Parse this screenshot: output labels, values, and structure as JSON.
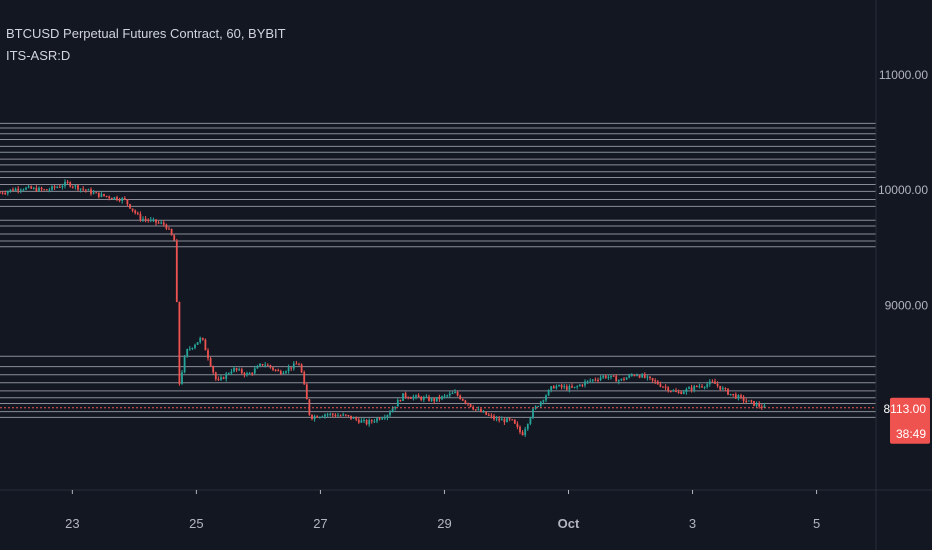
{
  "header": {
    "symbol_line": "BTCUSD Perpetual Futures Contract, 60, BYBIT",
    "indicator": "ITS-ASR:D"
  },
  "colors": {
    "background": "#131722",
    "up": "#26a69a",
    "down": "#ef5350",
    "level_line": "#b2b5be",
    "axis_text": "#b2b5be",
    "price_label_bg": "#ef5350"
  },
  "chart_data": {
    "type": "candlestick",
    "title": "BTCUSD Perpetual Futures Contract, 60, BYBIT",
    "x_ticks": [
      "23",
      "25",
      "27",
      "29",
      "Oct",
      "3",
      "5"
    ],
    "y_ticks": [
      "11000.00",
      "10000.00",
      "9000.00"
    ],
    "ylim": [
      7400,
      11650
    ],
    "x_dates": [
      "2019-09-21T20:00",
      "2019-10-05T23:00"
    ],
    "current_price": "8113.00",
    "countdown": "38:49",
    "support_resistance_levels": [
      10580,
      10540,
      10490,
      10440,
      10380,
      10330,
      10270,
      10220,
      10160,
      10110,
      10050,
      9990,
      9920,
      9860,
      9740,
      9690,
      9620,
      9560,
      9510,
      8560,
      8470,
      8400,
      8330,
      8260,
      8200,
      8150,
      8080,
      8030
    ],
    "price_path": [
      [
        "2019-09-21T20:00",
        9980
      ],
      [
        "2019-09-22T04:00",
        10020
      ],
      [
        "2019-09-22T14:00",
        10000
      ],
      [
        "2019-09-22T22:00",
        10060
      ],
      [
        "2019-09-23T10:00",
        9960
      ],
      [
        "2019-09-23T20:00",
        9920
      ],
      [
        "2019-09-24T02:00",
        9760
      ],
      [
        "2019-09-24T12:00",
        9700
      ],
      [
        "2019-09-24T16:00",
        9540
      ],
      [
        "2019-09-24T17:00",
        8280
      ],
      [
        "2019-09-24T20:00",
        8600
      ],
      [
        "2019-09-25T02:00",
        8720
      ],
      [
        "2019-09-25T08:00",
        8330
      ],
      [
        "2019-09-25T14:00",
        8450
      ],
      [
        "2019-09-25T20:00",
        8400
      ],
      [
        "2019-09-26T02:00",
        8500
      ],
      [
        "2019-09-26T08:00",
        8420
      ],
      [
        "2019-09-26T16:00",
        8500
      ],
      [
        "2019-09-26T20:00",
        8030
      ],
      [
        "2019-09-27T02:00",
        8060
      ],
      [
        "2019-09-27T10:00",
        8040
      ],
      [
        "2019-09-27T18:00",
        7980
      ],
      [
        "2019-09-28T02:00",
        8060
      ],
      [
        "2019-09-28T08:00",
        8220
      ],
      [
        "2019-09-28T14:00",
        8200
      ],
      [
        "2019-09-28T20:00",
        8180
      ],
      [
        "2019-09-29T04:00",
        8240
      ],
      [
        "2019-09-29T12:00",
        8100
      ],
      [
        "2019-09-29T20:00",
        8010
      ],
      [
        "2019-09-30T02:00",
        8000
      ],
      [
        "2019-09-30T06:00",
        7880
      ],
      [
        "2019-09-30T10:00",
        8080
      ],
      [
        "2019-09-30T18:00",
        8300
      ],
      [
        "2019-10-01T02:00",
        8280
      ],
      [
        "2019-10-01T06:00",
        8330
      ],
      [
        "2019-10-01T14:00",
        8390
      ],
      [
        "2019-10-01T20:00",
        8350
      ],
      [
        "2019-10-02T02:00",
        8410
      ],
      [
        "2019-10-02T10:00",
        8330
      ],
      [
        "2019-10-02T18:00",
        8240
      ],
      [
        "2019-10-03T02:00",
        8300
      ],
      [
        "2019-10-03T08:00",
        8330
      ],
      [
        "2019-10-03T14:00",
        8240
      ],
      [
        "2019-10-03T22:00",
        8160
      ],
      [
        "2019-10-04T04:00",
        8113
      ]
    ]
  }
}
